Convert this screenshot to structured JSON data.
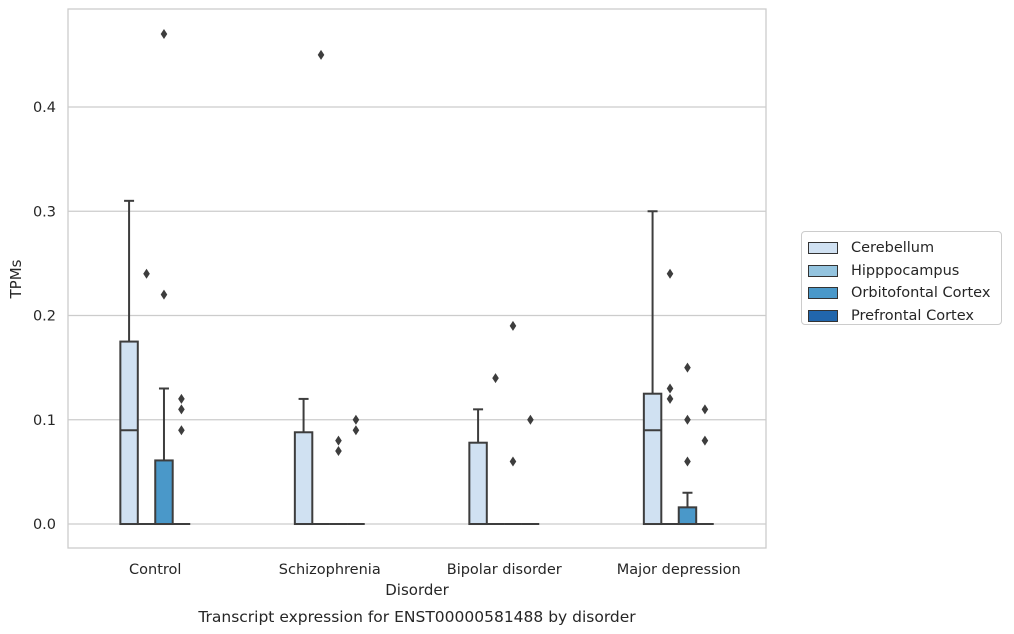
{
  "chart_data": {
    "type": "box",
    "title": "Transcript expression for ENST00000581488 by disorder",
    "xlabel": "Disorder",
    "ylabel": "TPMs",
    "ylim": [
      -0.023,
      0.494
    ],
    "yticks": [
      "0.0",
      "0.1",
      "0.2",
      "0.3",
      "0.4"
    ],
    "grid": true,
    "legend_position": "right",
    "categories": [
      "Control",
      "Schizophrenia",
      "Bipolar disorder",
      "Major depression"
    ],
    "series": [
      {
        "name": "Cerebellum",
        "color": "#d0e1f2",
        "boxes": [
          {
            "q1": 0.0,
            "median": 0.09,
            "q3": 0.175,
            "whisker_low": 0.0,
            "whisker_high": 0.31,
            "outliers": []
          },
          {
            "q1": 0.0,
            "median": 0.0,
            "q3": 0.088,
            "whisker_low": 0.0,
            "whisker_high": 0.12,
            "outliers": []
          },
          {
            "q1": 0.0,
            "median": 0.0,
            "q3": 0.078,
            "whisker_low": 0.0,
            "whisker_high": 0.11,
            "outliers": []
          },
          {
            "q1": 0.0,
            "median": 0.09,
            "q3": 0.125,
            "whisker_low": 0.0,
            "whisker_high": 0.3,
            "outliers": []
          }
        ]
      },
      {
        "name": "Hipppocampus",
        "color": "#94c4df",
        "boxes": [
          {
            "q1": 0.0,
            "median": 0.0,
            "q3": 0.0,
            "whisker_low": 0.0,
            "whisker_high": 0.0,
            "outliers": [
              0.24
            ]
          },
          {
            "q1": 0.0,
            "median": 0.0,
            "q3": 0.0,
            "whisker_low": 0.0,
            "whisker_high": 0.0,
            "outliers": [
              0.45
            ]
          },
          {
            "q1": 0.0,
            "median": 0.0,
            "q3": 0.0,
            "whisker_low": 0.0,
            "whisker_high": 0.0,
            "outliers": [
              0.14
            ]
          },
          {
            "q1": 0.0,
            "median": 0.0,
            "q3": 0.0,
            "whisker_low": 0.0,
            "whisker_high": 0.0,
            "outliers": [
              0.24,
              0.13,
              0.12
            ]
          }
        ]
      },
      {
        "name": "Orbitofontal Cortex",
        "color": "#4a98c9",
        "boxes": [
          {
            "q1": 0.0,
            "median": 0.0,
            "q3": 0.061,
            "whisker_low": 0.0,
            "whisker_high": 0.13,
            "outliers": [
              0.47,
              0.22
            ]
          },
          {
            "q1": 0.0,
            "median": 0.0,
            "q3": 0.0,
            "whisker_low": 0.0,
            "whisker_high": 0.0,
            "outliers": [
              0.08,
              0.07
            ]
          },
          {
            "q1": 0.0,
            "median": 0.0,
            "q3": 0.0,
            "whisker_low": 0.0,
            "whisker_high": 0.0,
            "outliers": [
              0.19,
              0.06
            ]
          },
          {
            "q1": 0.0,
            "median": 0.0,
            "q3": 0.016,
            "whisker_low": 0.0,
            "whisker_high": 0.03,
            "outliers": [
              0.15,
              0.1,
              0.06
            ]
          }
        ]
      },
      {
        "name": "Prefrontal Cortex",
        "color": "#2166ac",
        "boxes": [
          {
            "q1": 0.0,
            "median": 0.0,
            "q3": 0.0,
            "whisker_low": 0.0,
            "whisker_high": 0.0,
            "outliers": [
              0.12,
              0.11,
              0.09
            ]
          },
          {
            "q1": 0.0,
            "median": 0.0,
            "q3": 0.0,
            "whisker_low": 0.0,
            "whisker_high": 0.0,
            "outliers": [
              0.1,
              0.09
            ]
          },
          {
            "q1": 0.0,
            "median": 0.0,
            "q3": 0.0,
            "whisker_low": 0.0,
            "whisker_high": 0.0,
            "outliers": [
              0.1
            ]
          },
          {
            "q1": 0.0,
            "median": 0.0,
            "q3": 0.0,
            "whisker_low": 0.0,
            "whisker_high": 0.0,
            "outliers": [
              0.11,
              0.08
            ]
          }
        ]
      }
    ]
  }
}
